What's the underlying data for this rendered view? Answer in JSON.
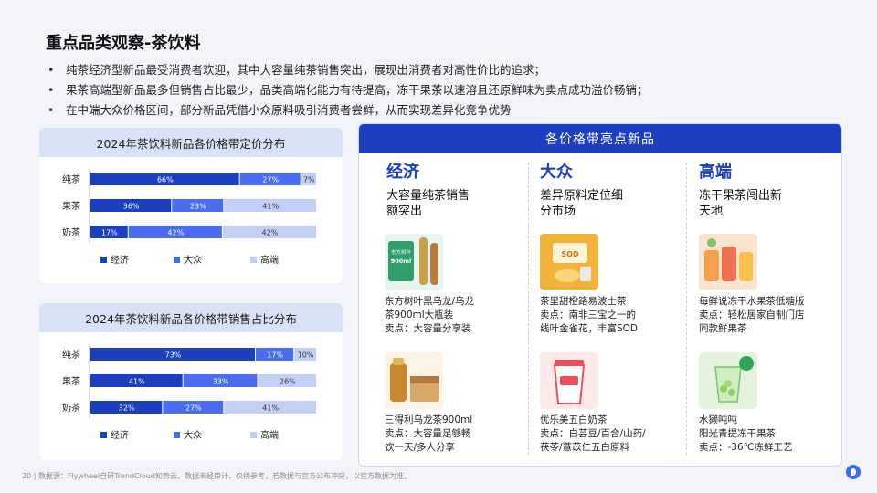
{
  "header": {
    "title": "重点品类观察-茶饮料",
    "bullets": [
      "纯茶经济型新品最受消费者欢迎，其中大容量纯茶销售突出，展现出消费者对高性价比的追求；",
      "果茶高端型新品最多但销售占比最少，品类高端化能力有待提高，冻干果茶以速溶且还原鲜味为卖点成功溢价畅销；",
      "在中端大众价格区间，部分新品凭借小众原料吸引消费者尝鲜，从而实现差异化竞争优势"
    ]
  },
  "colors": {
    "economy": "#1c3fc0",
    "mass": "#4a6cf0",
    "premium": "#c3cff5",
    "accent": "#1c3fc0"
  },
  "chart_data": [
    {
      "type": "bar",
      "orientation": "horizontal-stacked-100",
      "title": "2024年茶饮料新品各价格带定价分布",
      "categories": [
        "纯茶",
        "果茶",
        "奶茶"
      ],
      "series": [
        {
          "name": "经济",
          "values": [
            66,
            36,
            17
          ],
          "labels": [
            "66%",
            "36%",
            "17%"
          ]
        },
        {
          "name": "大众",
          "values": [
            27,
            23,
            42
          ],
          "labels": [
            "27%",
            "23%",
            "42%"
          ]
        },
        {
          "name": "高端",
          "values": [
            7,
            41,
            42
          ],
          "labels": [
            "7%",
            "41%",
            "42%"
          ]
        }
      ],
      "legend_position": "bottom"
    },
    {
      "type": "bar",
      "orientation": "horizontal-stacked-100",
      "title": "2024年茶饮料新品各价格带销售占比分布",
      "categories": [
        "纯茶",
        "果茶",
        "奶茶"
      ],
      "series": [
        {
          "name": "经济",
          "values": [
            73,
            41,
            32
          ],
          "labels": [
            "73%",
            "41%",
            "32%"
          ]
        },
        {
          "name": "大众",
          "values": [
            17,
            33,
            27
          ],
          "labels": [
            "17%",
            "33%",
            "27%"
          ]
        },
        {
          "name": "高端",
          "values": [
            10,
            26,
            41
          ],
          "labels": [
            "10%",
            "26%",
            "41%"
          ]
        }
      ],
      "legend_position": "bottom"
    }
  ],
  "card": {
    "title": "各价格带亮点新品",
    "columns": [
      {
        "title": "经济",
        "subtitle": "大容量纯茶销售额突出",
        "products": [
          {
            "lines": [
              "东方树叶黑乌龙/乌龙",
              "茶900ml大瓶装",
              "卖点：大容量分享装"
            ],
            "image_text": [
              "东方树叶",
              "900ml"
            ],
            "image_color": "#2e9e6a"
          },
          {
            "lines": [
              "三得利乌龙茶900ml",
              "卖点：大容量足够畅",
              "饮一天/多人分享"
            ],
            "image_text": [],
            "image_color": "#c8862d"
          }
        ]
      },
      {
        "title": "大众",
        "subtitle": "差异原料定位细分市场",
        "products": [
          {
            "lines": [
              "茶里甜橙路易波士茶",
              "卖点：南非三宝之一的",
              "线叶金雀花，丰富SOD"
            ],
            "image_text": [
              "SOD"
            ],
            "image_color": "#f2b33b"
          },
          {
            "lines": [
              "优乐美五白奶茶",
              "卖点：白芸豆/百合/山药/",
              "茯苓/薏苡仁五白原料"
            ],
            "image_text": [],
            "image_color": "#e8505b"
          }
        ]
      },
      {
        "title": "高端",
        "subtitle": "冻干果茶闯出新天地",
        "products": [
          {
            "lines": [
              "每鲜说冻干水果茶低糖版",
              "卖点：轻松居家自制门店",
              "同款鲜果茶"
            ],
            "image_text": [],
            "image_color": "#f08a4b"
          },
          {
            "lines": [
              "水獭吨吨",
              "阳光青提冻干果茶",
              "卖点：-36℃冻鲜工艺"
            ],
            "image_text": [],
            "image_color": "#7cc26a"
          }
        ]
      }
    ]
  },
  "footer": "20 | 数据源：Flywheel自研TrendCloud知势云。数据未经审计，仅供参考，若数据与官方公布冲突，以官方数据为准。"
}
